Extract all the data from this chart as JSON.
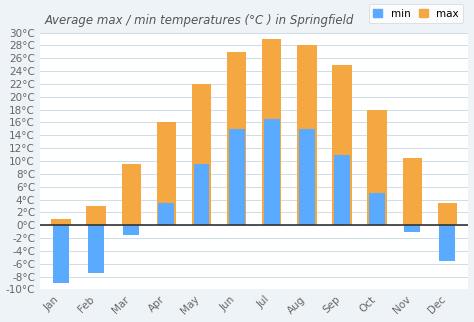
{
  "title": "Average max / min temperatures (°C ) in Springfield",
  "months": [
    "Jan",
    "Feb",
    "Mar",
    "Apr",
    "May",
    "Jun",
    "Jul",
    "Aug",
    "Sep",
    "Oct",
    "Nov",
    "Dec"
  ],
  "min_temps": [
    -9,
    -7.5,
    -1.5,
    3.5,
    9.5,
    15,
    16.5,
    15,
    11,
    5,
    -1,
    -5.5
  ],
  "max_temps": [
    1,
    3,
    9.5,
    16,
    22,
    27,
    29,
    28,
    25,
    18,
    10.5,
    3.5
  ],
  "min_color": "#5aabff",
  "max_color": "#f5a742",
  "background_color": "#eef3f8",
  "plot_bg_color": "#ffffff",
  "ylim": [
    -10,
    30
  ],
  "ytick_step": 2,
  "legend_labels": [
    "min",
    "max"
  ],
  "title_fontsize": 8.5,
  "tick_fontsize": 7.5,
  "grid_color": "#ccdde8"
}
